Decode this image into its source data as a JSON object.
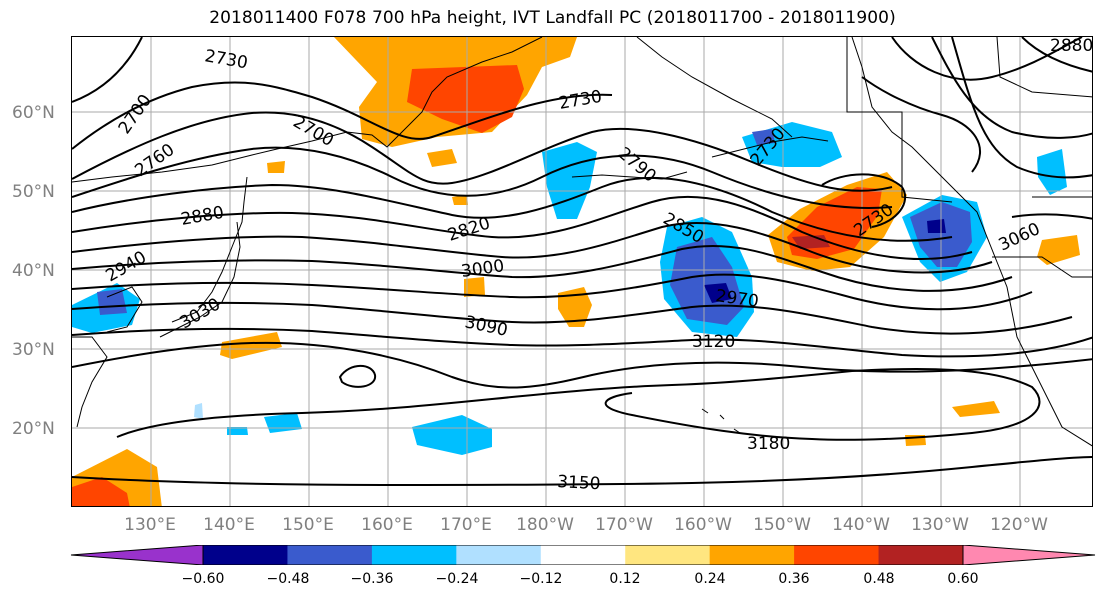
{
  "title": "2018011400 F078 700 hPa height, IVT Landfall PC (2018011700 - 2018011900)",
  "map": {
    "lat_labels": [
      "60°N",
      "50°N",
      "40°N",
      "30°N",
      "20°N"
    ],
    "lon_labels": [
      "130°E",
      "140°E",
      "150°E",
      "160°E",
      "170°E",
      "180°W",
      "170°W",
      "160°W",
      "150°W",
      "140°W",
      "130°W",
      "120°W"
    ],
    "contour_labels": [
      "2730",
      "2700",
      "2760",
      "2700",
      "2880",
      "2940",
      "3030",
      "2820",
      "2730",
      "2790",
      "2850",
      "3000",
      "3090",
      "2970",
      "3120",
      "2730",
      "2730",
      "3060",
      "3180",
      "3150",
      "2880"
    ]
  },
  "colorbar": {
    "colors": [
      "#9932cc",
      "#00008b",
      "#3a5bcd",
      "#00bfff",
      "#b0e0ff",
      "#ffffff",
      "#ffe680",
      "#ffa500",
      "#ff4500",
      "#b22222",
      "#ff88b0"
    ],
    "tick_labels": [
      "−0.60",
      "−0.48",
      "−0.36",
      "−0.24",
      "−0.12",
      "0.12",
      "0.24",
      "0.36",
      "0.48",
      "0.60"
    ]
  }
}
